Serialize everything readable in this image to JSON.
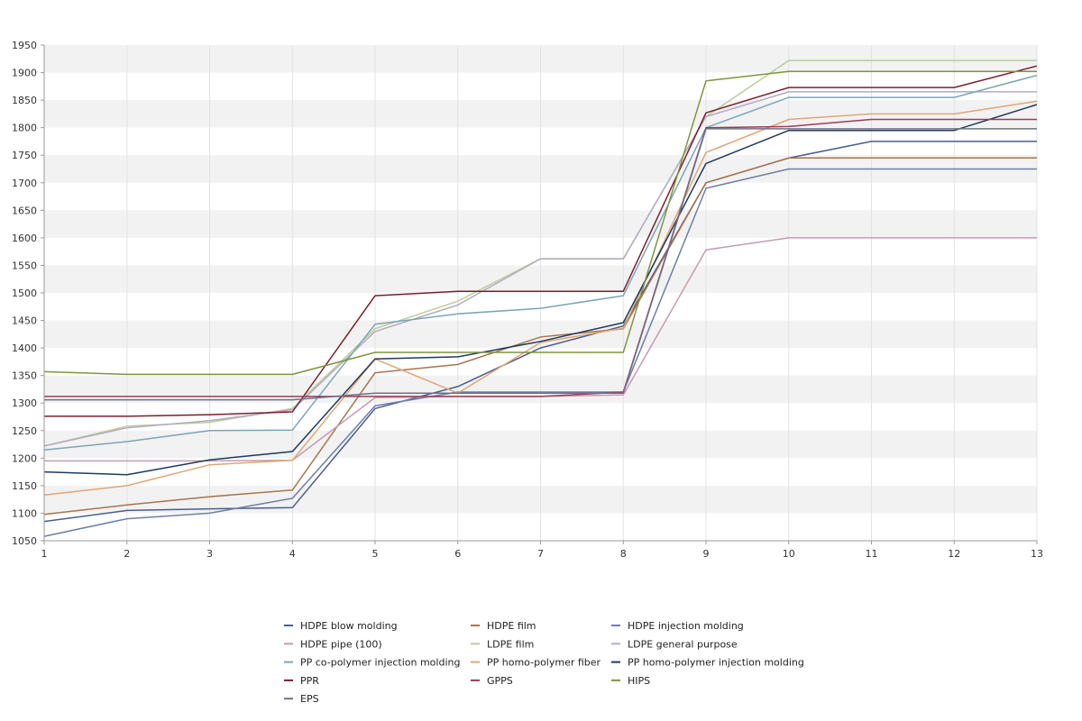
{
  "chart_data": {
    "type": "line",
    "title": "",
    "xlabel": "",
    "ylabel": "",
    "x": [
      1,
      2,
      3,
      4,
      5,
      6,
      7,
      8,
      9,
      10,
      11,
      12,
      13
    ],
    "xticks": [
      "1",
      "2",
      "3",
      "4",
      "5",
      "6",
      "7",
      "8",
      "9",
      "10",
      "11",
      "12",
      "13"
    ],
    "ylim": [
      1050,
      1950
    ],
    "yticks": [
      "1050",
      "1100",
      "1150",
      "1200",
      "1250",
      "1300",
      "1350",
      "1400",
      "1450",
      "1500",
      "1550",
      "1600",
      "1650",
      "1700",
      "1750",
      "1800",
      "1850",
      "1900",
      "1950"
    ],
    "grid": "horizontal alternating bands",
    "legend_position": "bottom",
    "series": [
      {
        "name": "HDPE blow molding",
        "color": "#4a5d8f",
        "values": [
          1085,
          1105,
          1108,
          1110,
          1290,
          1330,
          1400,
          1440,
          1700,
          1745,
          1775,
          1775,
          1775
        ]
      },
      {
        "name": "HDPE film",
        "color": "#a8744e",
        "values": [
          1098,
          1115,
          1130,
          1142,
          1355,
          1370,
          1420,
          1435,
          1700,
          1745,
          1745,
          1745,
          1745
        ]
      },
      {
        "name": "HDPE injection molding",
        "color": "#6c7fa8",
        "values": [
          1058,
          1090,
          1100,
          1127,
          1295,
          1320,
          1320,
          1320,
          1690,
          1725,
          1725,
          1725,
          1725
        ]
      },
      {
        "name": "HDPE pipe (100)",
        "color": "#c69bb1",
        "values": [
          1195,
          1195,
          1195,
          1196,
          1310,
          1312,
          1312,
          1315,
          1578,
          1600,
          1600,
          1600,
          1600
        ]
      },
      {
        "name": "LDPE film",
        "color": "#bccd98",
        "values": [
          1222,
          1258,
          1265,
          1290,
          1435,
          1485,
          1562,
          1562,
          1820,
          1922,
          1922,
          1922,
          1922
        ]
      },
      {
        "name": "LDPE general purpose",
        "color": "#b4aac4",
        "values": [
          1222,
          1255,
          1268,
          1288,
          1430,
          1478,
          1562,
          1562,
          1820,
          1865,
          1865,
          1865,
          1865
        ]
      },
      {
        "name": "PP co-polymer injection molding",
        "color": "#7aa5b8",
        "values": [
          1215,
          1230,
          1250,
          1251,
          1443,
          1462,
          1472,
          1495,
          1800,
          1855,
          1855,
          1855,
          1895
        ]
      },
      {
        "name": "PP homo-polymer fiber",
        "color": "#e0a675",
        "values": [
          1133,
          1150,
          1188,
          1196,
          1380,
          1318,
          1410,
          1436,
          1755,
          1815,
          1825,
          1825,
          1848
        ]
      },
      {
        "name": "PP homo-polymer injection molding",
        "color": "#1e3a5c",
        "values": [
          1175,
          1170,
          1197,
          1212,
          1380,
          1384,
          1412,
          1446,
          1735,
          1795,
          1795,
          1795,
          1842
        ]
      },
      {
        "name": "PPR",
        "color": "#7a1f2e",
        "values": [
          1276,
          1276,
          1279,
          1284,
          1495,
          1503,
          1503,
          1503,
          1827,
          1873,
          1873,
          1873,
          1912
        ]
      },
      {
        "name": "GPPS",
        "color": "#9c3b58",
        "values": [
          1312,
          1312,
          1312,
          1312,
          1312,
          1312,
          1312,
          1320,
          1800,
          1802,
          1815,
          1815,
          1815
        ]
      },
      {
        "name": "HIPS",
        "color": "#7f9440",
        "values": [
          1357,
          1352,
          1352,
          1352,
          1392,
          1392,
          1392,
          1392,
          1885,
          1902,
          1902,
          1902,
          1902
        ]
      },
      {
        "name": "EPS",
        "color": "#6f7088",
        "values": [
          1306,
          1306,
          1306,
          1306,
          1318,
          1318,
          1318,
          1318,
          1798,
          1798,
          1798,
          1798,
          1798
        ]
      }
    ]
  }
}
